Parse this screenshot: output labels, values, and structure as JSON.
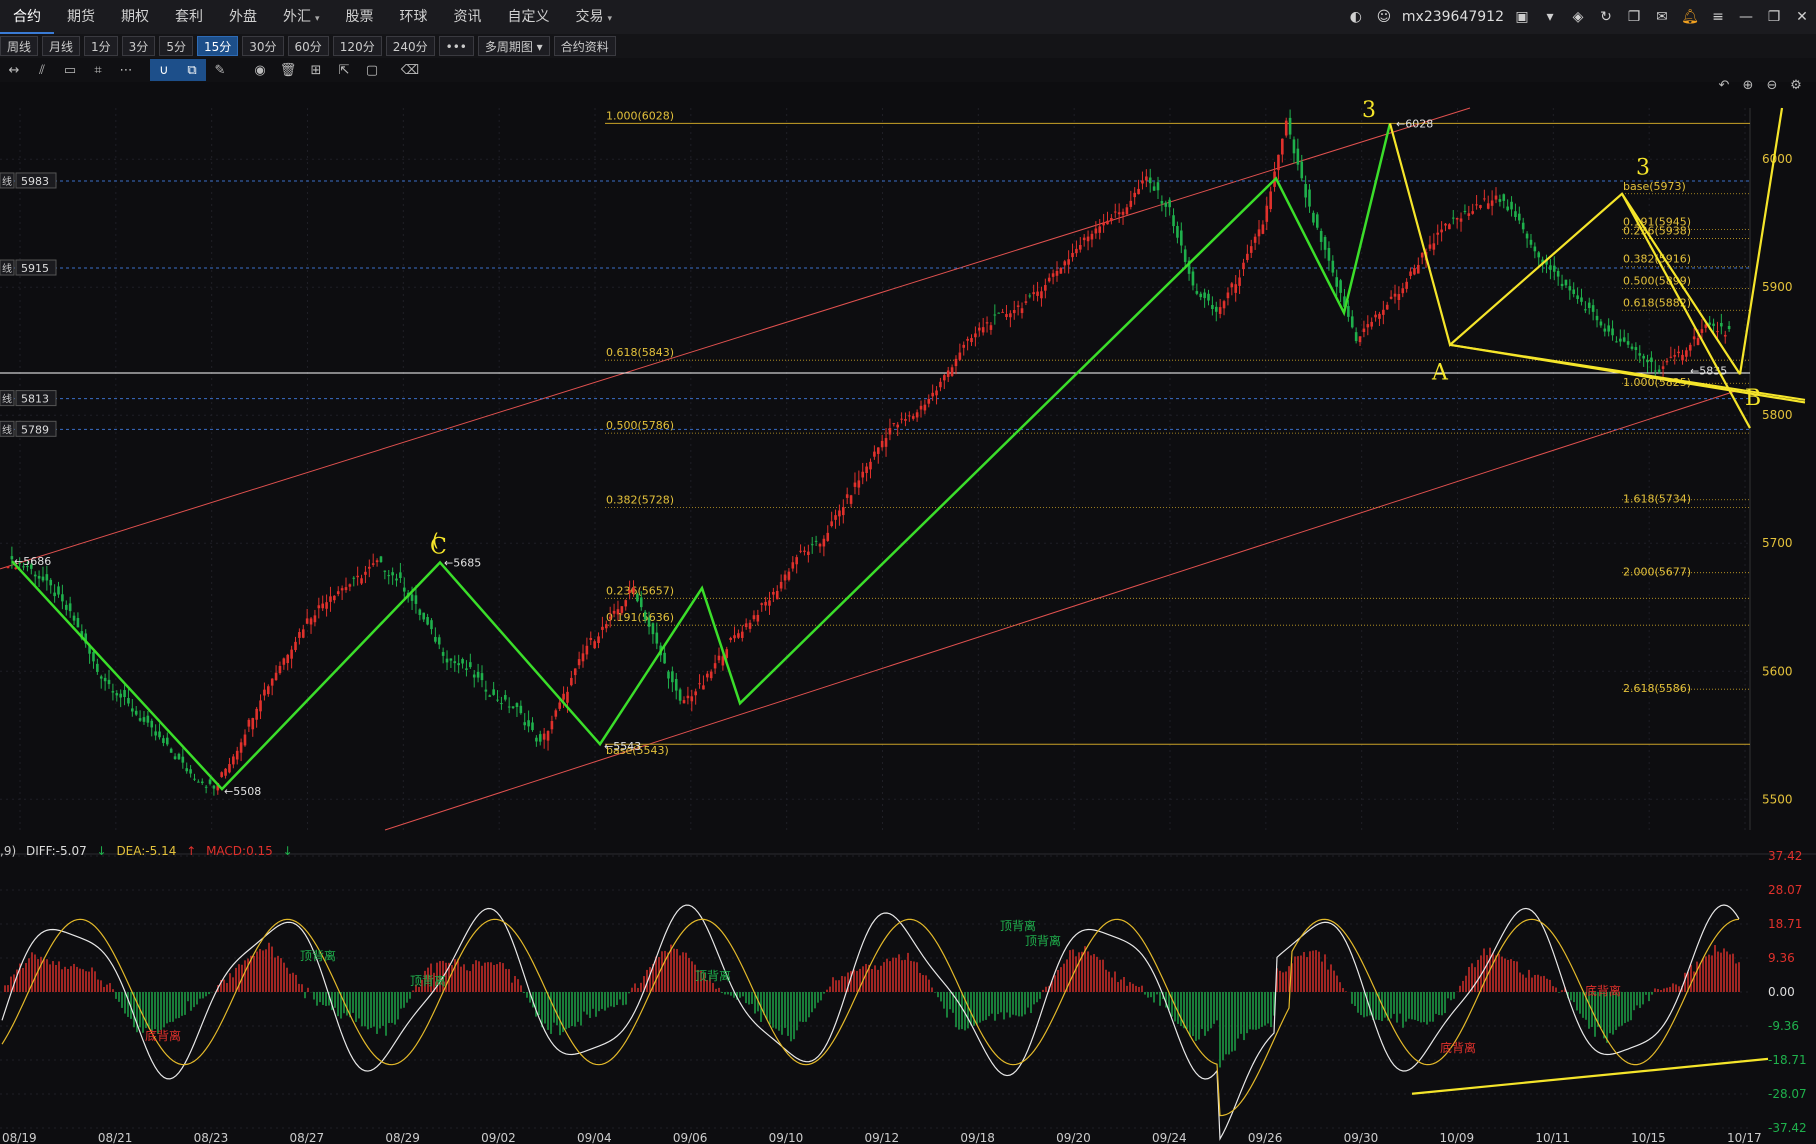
{
  "menu": {
    "items": [
      {
        "label": "合约",
        "active": true
      },
      {
        "label": "期货"
      },
      {
        "label": "期权"
      },
      {
        "label": "套利"
      },
      {
        "label": "外盘"
      },
      {
        "label": "外汇",
        "caret": "▾"
      },
      {
        "label": "股票"
      },
      {
        "label": "环球"
      },
      {
        "label": "资讯"
      },
      {
        "label": "自定义"
      },
      {
        "label": "交易",
        "caret": "▾"
      }
    ]
  },
  "account": {
    "username": "mx239647912"
  },
  "periods": [
    {
      "label": "周线"
    },
    {
      "label": "月线"
    },
    {
      "label": "1分"
    },
    {
      "label": "3分"
    },
    {
      "label": "5分"
    },
    {
      "label": "15分",
      "active": true
    },
    {
      "label": "30分"
    },
    {
      "label": "60分"
    },
    {
      "label": "120分"
    },
    {
      "label": "240分"
    },
    {
      "label": "•••"
    },
    {
      "label": "多周期图 ▾"
    },
    {
      "label": "合约资料"
    }
  ],
  "colors": {
    "up": "#e0312c",
    "down": "#1fb04c",
    "fib": "#c9a227",
    "fib_text": "#e3c13b",
    "channel": "#e0514f",
    "green_zz": "#3bde2a",
    "yellow_draw": "#f5e52a",
    "dotted_blue": "#3a6ec7"
  },
  "chart_data": [
    {
      "type": "candlestick",
      "y_axis_ticks": [
        6000,
        5900,
        5800,
        5700,
        5600,
        5500
      ],
      "ylim": [
        5476,
        6040
      ],
      "x_tick_labels": [
        "08/19",
        "08/21",
        "08/23",
        "08/27",
        "08/29",
        "09/02",
        "09/04",
        "09/06",
        "09/10",
        "09/12",
        "09/18",
        "09/20",
        "09/24",
        "09/26",
        "09/30",
        "10/09",
        "10/11",
        "10/15",
        "10/17"
      ],
      "price_path": [
        5686,
        5682,
        5665,
        5640,
        5600,
        5580,
        5560,
        5540,
        5520,
        5508,
        5540,
        5580,
        5610,
        5640,
        5660,
        5670,
        5685,
        5670,
        5640,
        5610,
        5600,
        5580,
        5570,
        5543,
        5580,
        5620,
        5640,
        5665,
        5620,
        5575,
        5590,
        5620,
        5640,
        5660,
        5690,
        5700,
        5730,
        5760,
        5790,
        5800,
        5820,
        5850,
        5870,
        5880,
        5890,
        5910,
        5930,
        5950,
        5960,
        5985,
        5960,
        5900,
        5880,
        5910,
        5950,
        6028,
        5960,
        5910,
        5860,
        5880,
        5900,
        5930,
        5950,
        5960,
        5973,
        5950,
        5920,
        5900,
        5882,
        5860,
        5850,
        5835,
        5850,
        5870,
        5865
      ],
      "marked_prices": [
        {
          "label": "←5686",
          "value": 5686
        },
        {
          "label": "←5508",
          "value": 5508
        },
        {
          "label": "←5685",
          "value": 5685
        },
        {
          "label": "←5543",
          "value": 5543
        },
        {
          "label": "←6028",
          "value": 6028
        },
        {
          "label": "←5835",
          "value": 5835
        }
      ],
      "fib_retracement_left": [
        {
          "label": "1.000(6028)",
          "value": 6028
        },
        {
          "label": "0.618(5843)",
          "value": 5843
        },
        {
          "label": "0.500(5786)",
          "value": 5786
        },
        {
          "label": "0.382(5728)",
          "value": 5728
        },
        {
          "label": "0.236(5657)",
          "value": 5657
        },
        {
          "label": "0.191(5636)",
          "value": 5636
        },
        {
          "label": "base(5543)",
          "value": 5543
        }
      ],
      "fib_extension_right": [
        {
          "label": "base(5973)",
          "value": 5973
        },
        {
          "label": "0.191(5945)",
          "value": 5945
        },
        {
          "label": "0.236(5938)",
          "value": 5938
        },
        {
          "label": "0.382(5916)",
          "value": 5916
        },
        {
          "label": "0.500(5899)",
          "value": 5899
        },
        {
          "label": "0.618(5882)",
          "value": 5882
        },
        {
          "label": "1.000(5825)",
          "value": 5825
        },
        {
          "label": "1.618(5734)",
          "value": 5734
        },
        {
          "label": "2.000(5677)",
          "value": 5677
        },
        {
          "label": "2.618(5586)",
          "value": 5586
        }
      ],
      "horizontal_lines": [
        {
          "tag": "线",
          "value": 5983
        },
        {
          "tag": "线",
          "value": 5915
        },
        {
          "tag": "线",
          "value": 5813
        },
        {
          "tag": "线",
          "value": 5789
        }
      ],
      "current_price_line": 5833,
      "zigzag_green": [
        5686,
        5508,
        5685,
        5543,
        5665,
        5575,
        5985,
        5880,
        6028
      ],
      "annotations_handwritten": [
        "3",
        "3",
        "A",
        "B",
        "C"
      ]
    },
    {
      "type": "macd",
      "legend": {
        "prefix": ",9)",
        "diff": "DIFF:-5.07",
        "diff_arrow": "↓",
        "dea": "DEA:-5.14",
        "dea_arrow": "↑",
        "macd": "MACD:0.15",
        "macd_arrow": "↓"
      },
      "y_axis_ticks": [
        "37.42",
        "28.07",
        "18.71",
        "9.36",
        "0.00",
        "-9.36",
        "-18.71",
        "-28.07",
        "-37.42"
      ],
      "ylim": [
        -37.42,
        37.42
      ],
      "divergence_labels": [
        "顶背离",
        "底背离",
        "顶背离",
        "顶背离",
        "顶背离",
        "顶背离",
        "底背离",
        "底背离"
      ]
    }
  ]
}
